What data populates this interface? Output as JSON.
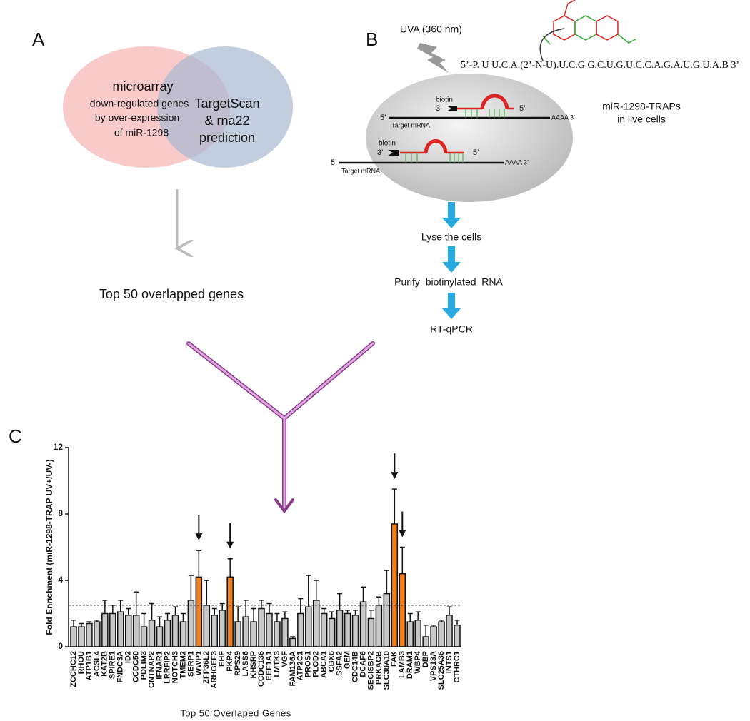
{
  "panels": {
    "a": {
      "label": "A",
      "venn_left": [
        "microarray",
        "down-regulated genes",
        "by over-expression",
        "of miR-1298"
      ],
      "venn_right": [
        "TargetScan",
        "& rna22",
        "prediction"
      ],
      "result": "Top 50 overlapped genes"
    },
    "b": {
      "label": "B",
      "light": "UVA (360 nm)",
      "sequence": "5’-P. U U.C.A.(2’-N-U).U.C.G G.C.U.G.U.C.C.A.G.A.U.G.U.A.B 3’",
      "cell_labels": [
        "miR-1298-TRAPs",
        "in live cells"
      ],
      "probe": {
        "biotin": "biotin",
        "end3": "3’",
        "end5": "5’",
        "mrna5": "5’",
        "mrna": "Target mRNA",
        "polya": "AAAA 3’"
      },
      "steps": [
        "Lyse the cells",
        "Purify  biotinylated  RNA",
        "RT-qPCR"
      ]
    },
    "c": {
      "label": "C"
    }
  },
  "chart_data": {
    "type": "bar",
    "ylabel": "Fold Enrichment (miR-1298-TRAP UV+/UV-)",
    "xlabel": "Top 50 Overlaped Genes",
    "categories": [
      "ZCCHC12",
      "RHOU",
      "ATP1B1",
      "ACSL4",
      "KAT2B",
      "SPIRE1",
      "FNDC3A",
      "ID2",
      "CCDC50",
      "PDLIM3",
      "CNTNAP2",
      "IFNAR1",
      "LRRFIP2",
      "NOTCH3",
      "TMEM2",
      "SERP1",
      "WWP1",
      "ZFP36L2",
      "ARHGEF3",
      "EHF",
      "PKP4",
      "RPS29",
      "LASS6",
      "KHSRP",
      "CCDC136",
      "EEF1A1",
      "LMTK3",
      "VGF",
      "FAM136A",
      "ATP2C1",
      "PROS1",
      "PLOD2",
      "ABCA1",
      "CBX6",
      "SSFA2",
      "GEM",
      "CDC14B",
      "DCAF6",
      "SECISBP2",
      "PRKACB",
      "SLC38A10",
      "FAK",
      "LAMB3",
      "DRAM1",
      "WBP4",
      "DBP",
      "VPS13A",
      "SLC25A36",
      "INTS1",
      "CTHRC1"
    ],
    "values": [
      1.2,
      1.2,
      1.4,
      1.5,
      2.0,
      2.0,
      2.1,
      1.9,
      1.9,
      1.2,
      1.6,
      1.2,
      1.6,
      1.9,
      1.5,
      2.8,
      4.2,
      2.5,
      1.9,
      2.2,
      4.2,
      1.5,
      1.8,
      1.5,
      2.3,
      2.0,
      1.5,
      1.7,
      0.5,
      2.0,
      2.4,
      2.8,
      2.0,
      1.7,
      2.2,
      2.0,
      1.9,
      2.7,
      1.7,
      2.5,
      3.2,
      7.4,
      4.4,
      1.5,
      1.6,
      0.6,
      1.2,
      1.5,
      1.9,
      1.3
    ],
    "errors": [
      0.4,
      0.2,
      0.1,
      0.1,
      0.8,
      0.5,
      0.7,
      0.4,
      1.4,
      0.8,
      1.0,
      0.6,
      0.4,
      0.5,
      0.5,
      1.5,
      1.6,
      1.5,
      0.4,
      0.4,
      1.1,
      0.9,
      1.0,
      0.8,
      0.5,
      0.6,
      0.5,
      0.4,
      0.1,
      0.9,
      1.9,
      1.2,
      0.3,
      0.4,
      1.0,
      0.2,
      0.3,
      0.9,
      0.5,
      0.5,
      1.4,
      2.1,
      1.6,
      0.5,
      0.5,
      0.7,
      0.1,
      0.1,
      0.5,
      0.3
    ],
    "highlight_color": "#f07f1e",
    "colors": [
      "#c8c8c8",
      "#c8c8c8",
      "#c8c8c8",
      "#c8c8c8",
      "#c8c8c8",
      "#c8c8c8",
      "#c8c8c8",
      "#c8c8c8",
      "#c8c8c8",
      "#c8c8c8",
      "#c8c8c8",
      "#c8c8c8",
      "#c8c8c8",
      "#c8c8c8",
      "#c8c8c8",
      "#c8c8c8",
      "#f07f1e",
      "#c8c8c8",
      "#c8c8c8",
      "#c8c8c8",
      "#f07f1e",
      "#c8c8c8",
      "#c8c8c8",
      "#c8c8c8",
      "#c8c8c8",
      "#c8c8c8",
      "#c8c8c8",
      "#c8c8c8",
      "#c8c8c8",
      "#c8c8c8",
      "#c8c8c8",
      "#c8c8c8",
      "#c8c8c8",
      "#c8c8c8",
      "#c8c8c8",
      "#c8c8c8",
      "#c8c8c8",
      "#c8c8c8",
      "#c8c8c8",
      "#c8c8c8",
      "#c8c8c8",
      "#f07f1e",
      "#f07f1e",
      "#c8c8c8",
      "#c8c8c8",
      "#c8c8c8",
      "#c8c8c8",
      "#c8c8c8",
      "#c8c8c8",
      "#c8c8c8"
    ],
    "threshold": 2.5,
    "ylim": [
      0,
      12
    ],
    "yticks": [
      0,
      4,
      8,
      12
    ]
  }
}
